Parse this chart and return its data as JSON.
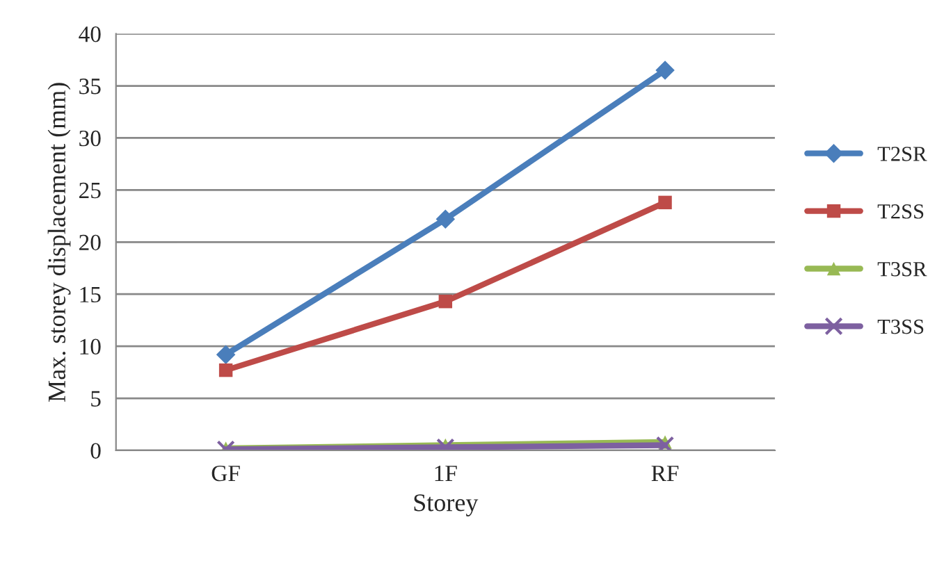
{
  "chart_data": {
    "type": "line",
    "xlabel": "Storey",
    "ylabel": "Max. storey displacement (mm)",
    "categories": [
      "GF",
      "1F",
      "RF"
    ],
    "series": [
      {
        "name": "T2SR",
        "color": "#4a7ebb",
        "marker": "diamond",
        "values": [
          9.2,
          22.2,
          36.5
        ]
      },
      {
        "name": "T2SS",
        "color": "#be4b48",
        "marker": "square",
        "values": [
          7.7,
          14.3,
          23.8
        ]
      },
      {
        "name": "T3SR",
        "color": "#98b954",
        "marker": "triangle",
        "values": [
          0.2,
          0.5,
          0.8
        ]
      },
      {
        "name": "T3SS",
        "color": "#7d60a0",
        "marker": "cross",
        "values": [
          0.1,
          0.3,
          0.5
        ]
      }
    ],
    "ylim": [
      0,
      40
    ],
    "yticks": [
      0,
      5,
      10,
      15,
      20,
      25,
      30,
      35,
      40
    ],
    "grid": "y",
    "legend": "right"
  }
}
